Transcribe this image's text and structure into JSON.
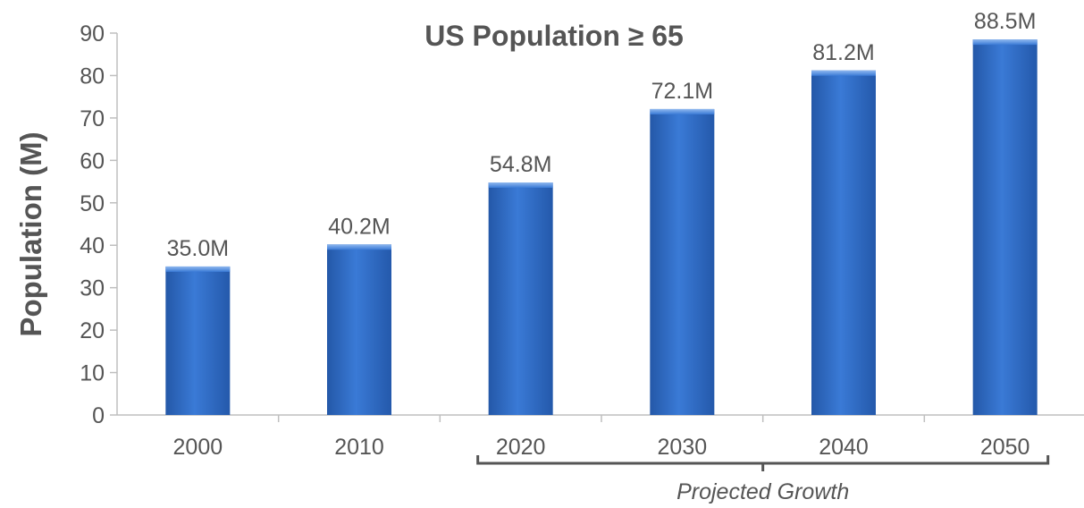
{
  "chart_data": {
    "type": "bar",
    "title": "US Population ≥ 65",
    "xlabel": "",
    "ylabel": "Population (M)",
    "ylim": [
      0,
      90
    ],
    "yticks": [
      0,
      10,
      20,
      30,
      40,
      50,
      60,
      70,
      80,
      90
    ],
    "categories": [
      "2000",
      "2010",
      "2020",
      "2030",
      "2040",
      "2050"
    ],
    "values": [
      35.0,
      40.2,
      54.8,
      72.1,
      81.2,
      88.5
    ],
    "data_labels": [
      "35.0M",
      "40.2M",
      "54.8M",
      "72.1M",
      "81.2M",
      "88.5M"
    ],
    "annotation": {
      "text": "Projected Growth",
      "from_category": "2020",
      "to_category": "2050"
    },
    "grid": false,
    "legend": "none",
    "bar_color": "#2f6cc8"
  }
}
